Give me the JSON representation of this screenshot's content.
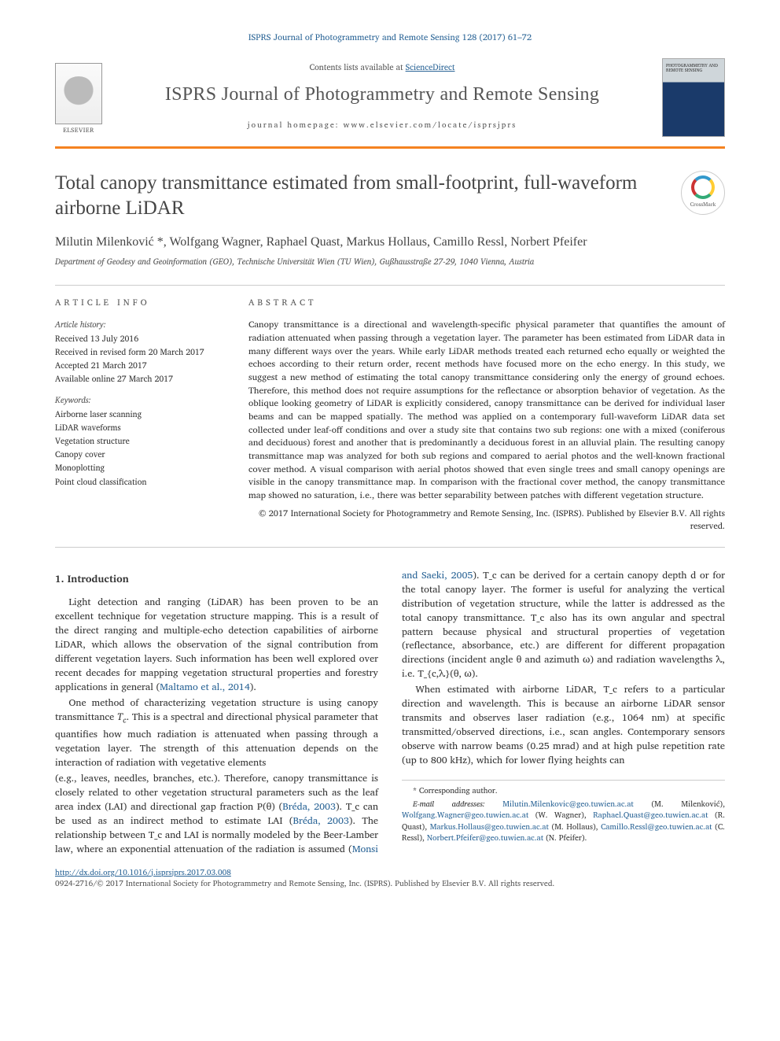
{
  "running_head": "ISPRS Journal of Photogrammetry and Remote Sensing 128 (2017) 61–72",
  "header": {
    "contents_prefix": "Contents lists available at ",
    "contents_link": "ScienceDirect",
    "journal_name": "ISPRS Journal of Photogrammetry and Remote Sensing",
    "homepage_label": "journal homepage: ",
    "homepage_url": "www.elsevier.com/locate/isprsjprs",
    "publisher": "ELSEVIER",
    "cover_caption": "PHOTOGRAMMETRY AND REMOTE SENSING"
  },
  "crossmark_label": "CrossMark",
  "title": "Total canopy transmittance estimated from small-footprint, full-waveform airborne LiDAR",
  "authors_line": "Milutin Milenković *, Wolfgang Wagner, Raphael Quast, Markus Hollaus, Camillo Ressl, Norbert Pfeifer",
  "affiliation": "Department of Geodesy and Geoinformation (GEO), Technische Universität Wien (TU Wien), Gußhausstraße 27-29, 1040 Vienna, Austria",
  "article_info": {
    "heading": "article info",
    "history_label": "Article history:",
    "history": [
      "Received 13 July 2016",
      "Received in revised form 20 March 2017",
      "Accepted 21 March 2017",
      "Available online 27 March 2017"
    ],
    "keywords_label": "Keywords:",
    "keywords": [
      "Airborne laser scanning",
      "LiDAR waveforms",
      "Vegetation structure",
      "Canopy cover",
      "Monoplotting",
      "Point cloud classification"
    ]
  },
  "abstract": {
    "heading": "abstract",
    "text": "Canopy transmittance is a directional and wavelength-specific physical parameter that quantifies the amount of radiation attenuated when passing through a vegetation layer. The parameter has been estimated from LiDAR data in many different ways over the years. While early LiDAR methods treated each returned echo equally or weighted the echoes according to their return order, recent methods have focused more on the echo energy. In this study, we suggest a new method of estimating the total canopy transmittance considering only the energy of ground echoes. Therefore, this method does not require assumptions for the reflectance or absorption behavior of vegetation. As the oblique looking geometry of LiDAR is explicitly considered, canopy transmittance can be derived for individual laser beams and can be mapped spatially. The method was applied on a contemporary full-waveform LiDAR data set collected under leaf-off conditions and over a study site that contains two sub regions: one with a mixed (coniferous and deciduous) forest and another that is predominantly a deciduous forest in an alluvial plain. The resulting canopy transmittance map was analyzed for both sub regions and compared to aerial photos and the well-known fractional cover method. A visual comparison with aerial photos showed that even single trees and small canopy openings are visible in the canopy transmittance map. In comparison with the fractional cover method, the canopy transmittance map showed no saturation, i.e., there was better separability between patches with different vegetation structure.",
    "copyright": "© 2017 International Society for Photogrammetry and Remote Sensing, Inc. (ISPRS). Published by Elsevier B.V. All rights reserved."
  },
  "body": {
    "section_heading": "1. Introduction",
    "p1": "Light detection and ranging (LiDAR) has been proven to be an excellent technique for vegetation structure mapping. This is a result of the direct ranging and multiple-echo detection capabilities of airborne LiDAR, which allows the observation of the signal contribution from different vegetation layers. Such information has been well explored over recent decades for mapping vegetation structural properties and forestry applications in general (",
    "p1_ref": "Maltamo et al., 2014",
    "p1_tail": ").",
    "p2a": "One method of characterizing vegetation structure is using canopy transmittance ",
    "p2b": ". This is a spectral and directional physical parameter that quantifies how much radiation is attenuated when passing through a vegetation layer. The strength of this attenuation depends on the interaction of radiation with vegetative elements ",
    "p3a": "(e.g., leaves, needles, branches, etc.). Therefore, canopy transmittance is closely related to other vegetation structural parameters such as the leaf area index (LAI) and directional gap fraction P(θ) (",
    "p3_ref1": "Bréda, 2003",
    "p3b": "). T_c can be used as an indirect method to estimate LAI (",
    "p3_ref2": "Bréda, 2003",
    "p3c": "). The relationship between T_c and LAI is normally modeled by the Beer-Lamber law, where an exponential attenuation of the radiation is assumed (",
    "p3_ref3": "Monsi and Saeki, 2005",
    "p3d": "). T_c can be derived for a certain canopy depth d or for the total canopy layer. The former is useful for analyzing the vertical distribution of vegetation structure, while the latter is addressed as the total canopy transmittance. T_c also has its own angular and spectral pattern because physical and structural properties of vegetation (reflectance, absorbance, etc.) are different for different propagation directions (incident angle θ and azimuth ω) and radiation wavelengths λ, i.e. T_{c,λ}(θ, ω).",
    "p4": "When estimated with airborne LiDAR, T_c refers to a particular direction and wavelength. This is because an airborne LiDAR sensor transmits and observes laser radiation (e.g., 1064 nm) at specific transmitted/observed directions, i.e., scan angles. Contemporary sensors observe with narrow beams (0.25 mrad) and at high pulse repetition rate (up to 800 kHz), which for lower flying heights can"
  },
  "footnotes": {
    "corresponding": "* Corresponding author.",
    "emails_label": "E-mail addresses:",
    "emails": [
      {
        "addr": "Milutin.Milenkovic@geo.tuwien.ac.at",
        "who": "(M. Milenković)"
      },
      {
        "addr": "Wolfgang.Wagner@geo.tuwien.ac.at",
        "who": "(W. Wagner)"
      },
      {
        "addr": "Raphael.Quast@geo.tuwien.ac.at",
        "who": "(R. Quast)"
      },
      {
        "addr": "Markus.Hollaus@geo.tuwien.ac.at",
        "who": "(M. Hollaus)"
      },
      {
        "addr": "Camillo.Ressl@geo.tuwien.ac.at",
        "who": "(C. Ressl)"
      },
      {
        "addr": "Norbert.Pfeifer@geo.tuwien.ac.at",
        "who": "(N. Pfeifer)"
      }
    ]
  },
  "doi": {
    "url": "http://dx.doi.org/10.1016/j.isprsjprs.2017.03.008",
    "issn_line": "0924-2716/© 2017 International Society for Photogrammetry and Remote Sensing, Inc. (ISPRS). Published by Elsevier B.V. All rights reserved."
  },
  "colors": {
    "accent_orange": "#f58220",
    "link_blue": "#2a6496",
    "text_gray": "#555555"
  }
}
